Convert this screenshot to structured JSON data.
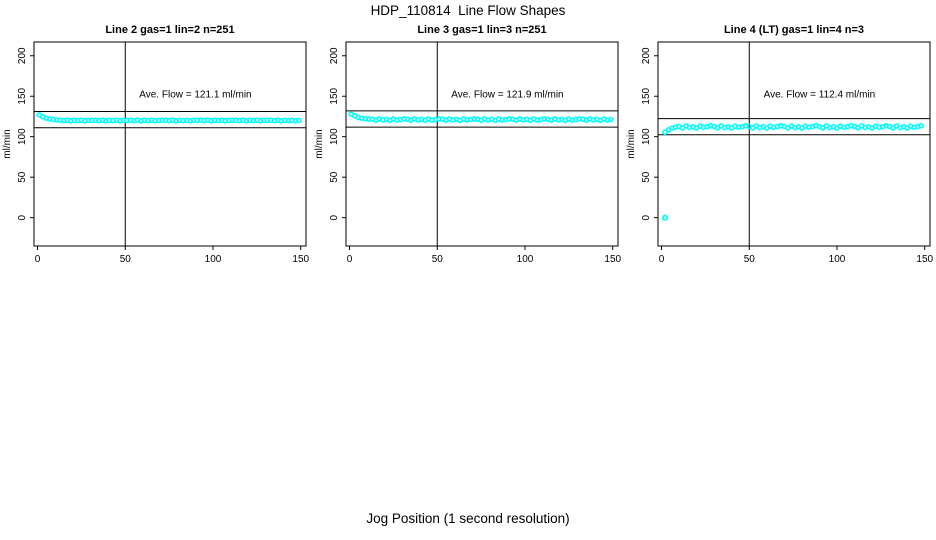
{
  "page": {
    "title": "HDP_110814  Line Flow Shapes",
    "xlabel": "Jog Position (1 second resolution)"
  },
  "axes": {
    "ylabel": "ml/min",
    "x_ticks": [
      0,
      50,
      100,
      150
    ],
    "y_ticks": [
      0,
      50,
      100,
      150,
      200
    ],
    "x_range": [
      -2,
      153
    ],
    "y_range": [
      -35,
      217
    ],
    "grid": false
  },
  "style": {
    "point_color": "#00ffff",
    "line_color": "#000000",
    "background": "#ffffff"
  },
  "chart_data": [
    {
      "type": "scatter",
      "title": "Line 2 gas=1 lin=2 n=251",
      "annotation": "Ave. Flow =  121.1   ml/min",
      "ave_flow": 121.1,
      "units": "ml/min",
      "n_stated": 251,
      "ref_lines": [
        131.1,
        111.1
      ],
      "vline_x": 50,
      "annotation_pos": {
        "x": 90,
        "y": 152
      },
      "series": {
        "name": "flow",
        "x_start": 1,
        "x_step": 2,
        "y": [
          127.0,
          124.6,
          122.9,
          121.8,
          121.2,
          120.8,
          120.4,
          119.8,
          120.6,
          119.5,
          120.2,
          119.9,
          120.5,
          119.6,
          120.1,
          120.3,
          120.4,
          119.8,
          120.6,
          119.5,
          120.2,
          119.9,
          120.5,
          119.6,
          120.1,
          120.3,
          120.4,
          119.8,
          120.6,
          119.5,
          120.2,
          119.9,
          120.5,
          119.6,
          120.1,
          120.3,
          120.4,
          119.8,
          120.6,
          119.5,
          120.2,
          119.9,
          120.5,
          119.6,
          120.1,
          120.3,
          120.4,
          119.8,
          120.6,
          119.5,
          120.2,
          119.9,
          120.5,
          119.6,
          120.1,
          120.3,
          120.4,
          119.8,
          120.6,
          119.5,
          120.2,
          119.9,
          120.5,
          119.6,
          120.1,
          120.3,
          120.4,
          119.8,
          120.6,
          119.5,
          120.2,
          119.9,
          120.5,
          119.6,
          120.1
        ]
      }
    },
    {
      "type": "scatter",
      "title": "Line 3 gas=1 lin=3 n=251",
      "annotation": "Ave. Flow =  121.9   ml/min",
      "ave_flow": 121.9,
      "units": "ml/min",
      "n_stated": 251,
      "ref_lines": [
        131.9,
        111.9
      ],
      "vline_x": 50,
      "annotation_pos": {
        "x": 90,
        "y": 152
      },
      "series": {
        "name": "flow",
        "x_start": 1,
        "x_step": 2,
        "y": [
          128.0,
          125.8,
          123.9,
          122.8,
          122.2,
          121.9,
          121.6,
          120.3,
          122.0,
          120.8,
          121.5,
          120.1,
          121.9,
          120.6,
          121.2,
          122.1,
          121.6,
          120.3,
          122.0,
          120.8,
          121.5,
          120.1,
          121.9,
          120.6,
          121.2,
          122.1,
          121.6,
          120.3,
          122.0,
          120.8,
          121.5,
          120.1,
          121.9,
          120.6,
          121.2,
          122.1,
          121.6,
          120.3,
          122.0,
          120.8,
          121.5,
          120.1,
          121.9,
          120.6,
          121.2,
          122.1,
          121.6,
          120.3,
          122.0,
          120.8,
          121.5,
          120.1,
          121.9,
          120.6,
          121.2,
          122.1,
          121.6,
          120.3,
          122.0,
          120.8,
          121.5,
          120.1,
          121.9,
          120.6,
          121.2,
          122.1,
          121.6,
          120.3,
          122.0,
          120.8,
          121.5,
          120.1,
          121.9,
          120.6,
          121.2
        ]
      }
    },
    {
      "type": "scatter",
      "title": "Line 4 (LT) gas=1 lin=4 n=3",
      "annotation": "Ave. Flow =  112.4   ml/min",
      "ave_flow": 112.4,
      "units": "ml/min",
      "n_stated": 3,
      "ref_lines": [
        122.4,
        102.4
      ],
      "vline_x": 50,
      "annotation_pos": {
        "x": 90,
        "y": 152
      },
      "outlier": [
        2,
        0
      ],
      "series": {
        "name": "flow",
        "x_start": 2,
        "x_step": 2,
        "y": [
          105.5,
          108.5,
          110.5,
          111.8,
          112.6,
          110.9,
          113.4,
          111.3,
          112.2,
          110.6,
          113.0,
          111.7,
          112.4,
          113.6,
          112.6,
          110.9,
          113.4,
          111.3,
          112.2,
          110.6,
          113.0,
          111.7,
          112.4,
          113.6,
          112.6,
          110.9,
          113.4,
          111.3,
          112.2,
          110.6,
          113.0,
          111.7,
          112.4,
          113.6,
          112.6,
          110.9,
          113.4,
          111.3,
          112.2,
          110.6,
          113.0,
          111.7,
          112.4,
          113.6,
          112.6,
          110.9,
          113.4,
          111.3,
          112.2,
          110.6,
          113.0,
          111.7,
          112.4,
          113.6,
          112.6,
          110.9,
          113.4,
          111.3,
          112.2,
          110.6,
          113.0,
          111.7,
          112.4,
          113.6,
          112.6,
          110.9,
          113.4,
          111.3,
          112.2,
          110.6,
          113.0,
          111.7,
          112.4,
          113.6
        ]
      }
    }
  ]
}
